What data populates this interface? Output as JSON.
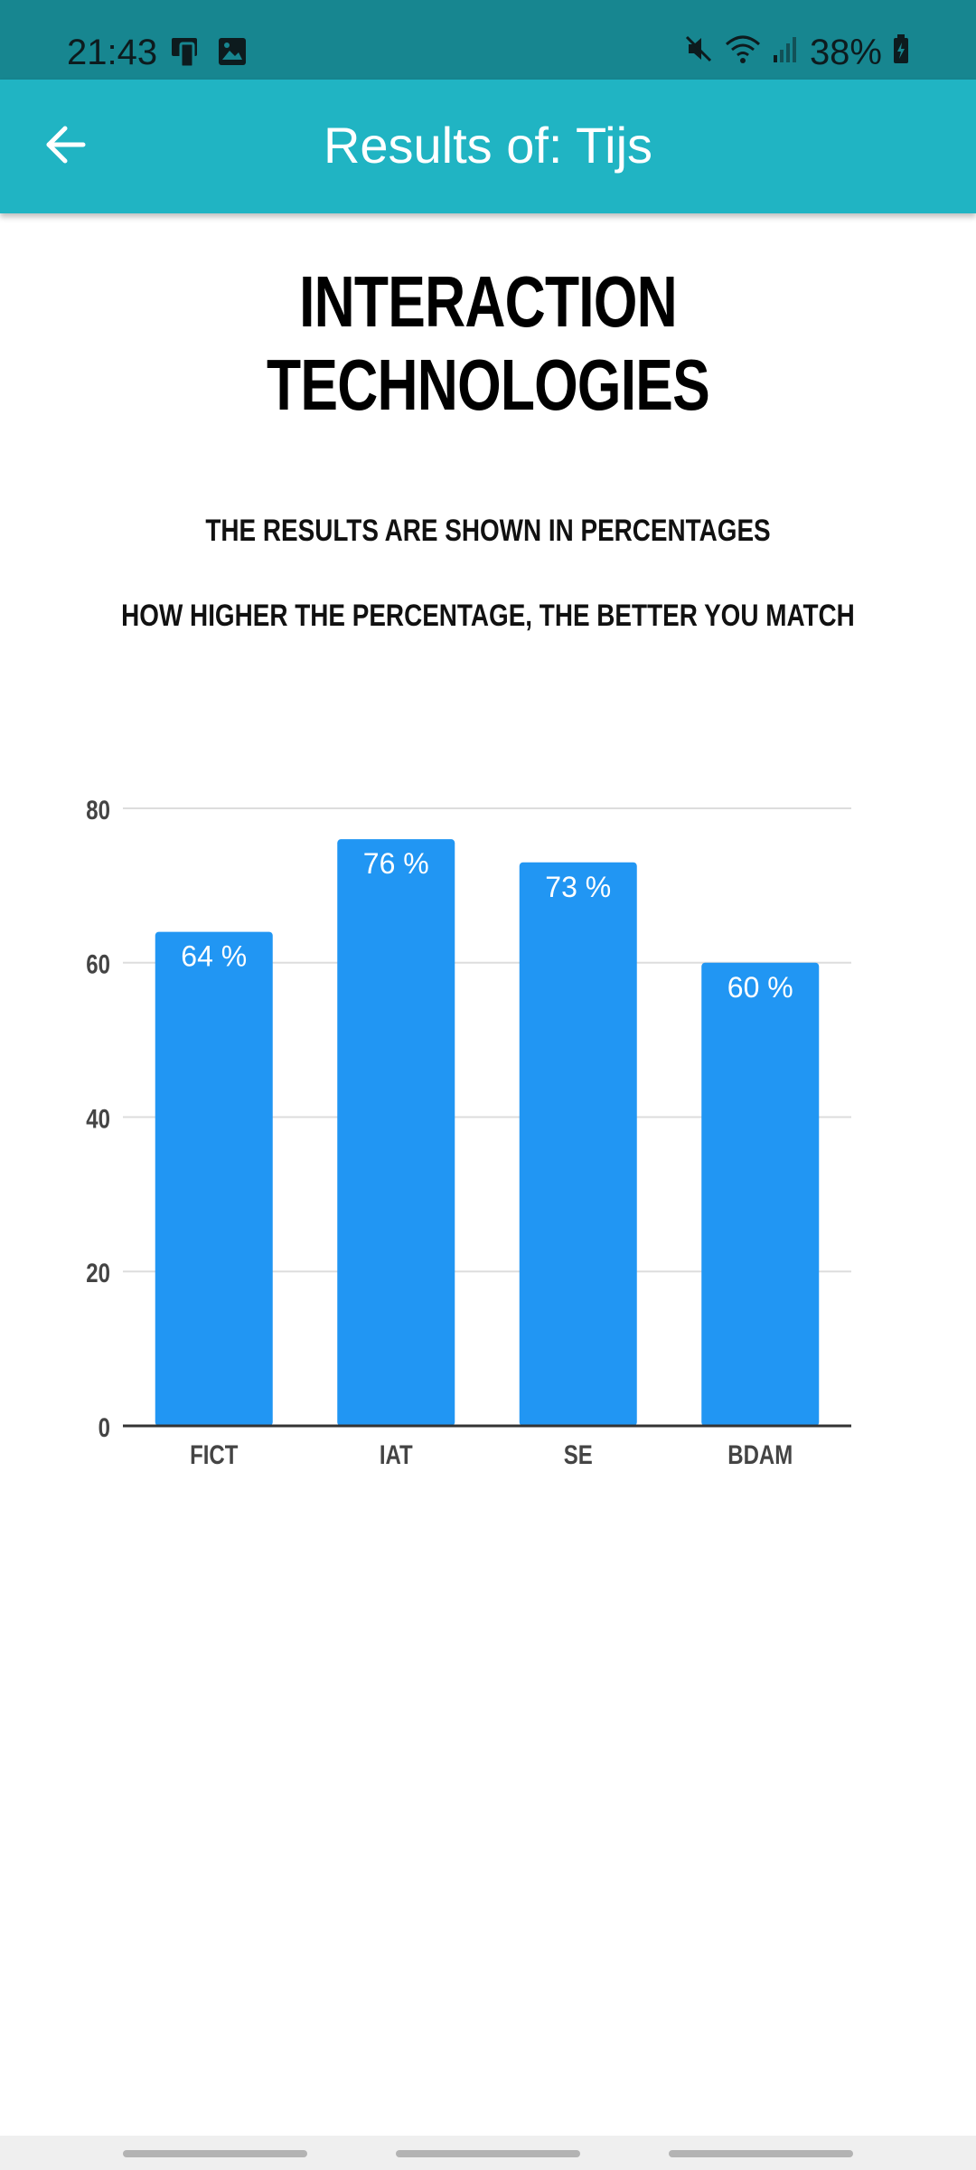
{
  "status_bar": {
    "time": "21:43",
    "battery": "38%",
    "icons_left": [
      "screen-mirror-icon",
      "image-icon"
    ],
    "icons_right": [
      "mute-icon",
      "wifi-icon",
      "signal-icon",
      "battery-charging-icon"
    ]
  },
  "app_bar": {
    "title": "Results of: Tijs",
    "back_icon": "arrow-left-icon",
    "background": "#20b4c3"
  },
  "page": {
    "heading": "INTERACTION TECHNOLOGIES",
    "info_line_1": "THE RESULTS ARE SHOWN IN PERCENTAGES",
    "info_line_2": "HOW HIGHER THE PERCENTAGE, THE BETTER YOU MATCH"
  },
  "chart_data": {
    "type": "bar",
    "categories": [
      "FICT",
      "IAT",
      "SE",
      "BDAM"
    ],
    "values": [
      64,
      76,
      73,
      60
    ],
    "data_labels": [
      "64 %",
      "76 %",
      "73 %",
      "60 %"
    ],
    "y_ticks": [
      "0",
      "20",
      "40",
      "60",
      "80"
    ],
    "ylim": [
      0,
      80
    ],
    "grid": true,
    "bar_color": "#2196f3"
  }
}
